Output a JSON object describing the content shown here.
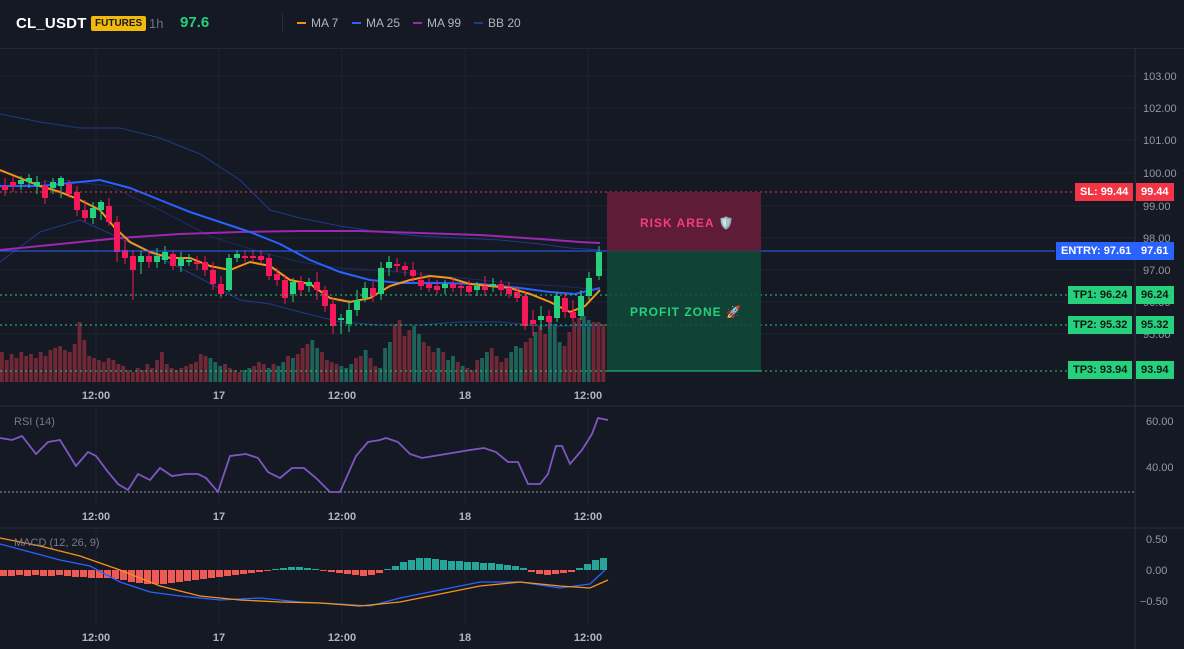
{
  "header": {
    "symbol": "CL_USDT",
    "badge": "FUTURES",
    "interval": "1h",
    "last_price": "97.6",
    "indicators": [
      {
        "label": "MA 7",
        "color": "#f7931a"
      },
      {
        "label": "MA 25",
        "color": "#2962ff"
      },
      {
        "label": "MA 99",
        "color": "#9c27b0"
      },
      {
        "label": "BB 20",
        "color": "#1e3a8a"
      }
    ]
  },
  "price_axis": {
    "ticks": [
      "103.00",
      "102.00",
      "101.00",
      "100.00",
      "99.00",
      "98.00",
      "97.00",
      "96.00",
      "95.00"
    ]
  },
  "time_axis": {
    "labels": [
      "12:00",
      "17",
      "12:00",
      "18",
      "12:00"
    ]
  },
  "rsi": {
    "title": "RSI (14)",
    "ticks": [
      "60.00",
      "40.00"
    ]
  },
  "macd": {
    "title": "MACD (12, 26, 9)",
    "ticks": [
      "0.50",
      "0.00",
      "−0.50"
    ]
  },
  "levels": {
    "sl": {
      "label": "SL: 99.44",
      "value": "99.44",
      "color": "#f23645"
    },
    "entry": {
      "label": "ENTRY: 97.61",
      "value": "97.61",
      "color": "#2962ff"
    },
    "tp1": {
      "label": "TP1: 96.24",
      "value": "96.24",
      "color": "#26d07c"
    },
    "tp2": {
      "label": "TP2: 95.32",
      "value": "95.32",
      "color": "#26d07c"
    },
    "tp3": {
      "label": "TP3: 93.94",
      "value": "93.94",
      "color": "#26d07c"
    }
  },
  "zones": {
    "risk": "RISK AREA 🛡️",
    "profit": "PROFIT ZONE 🚀"
  }
}
